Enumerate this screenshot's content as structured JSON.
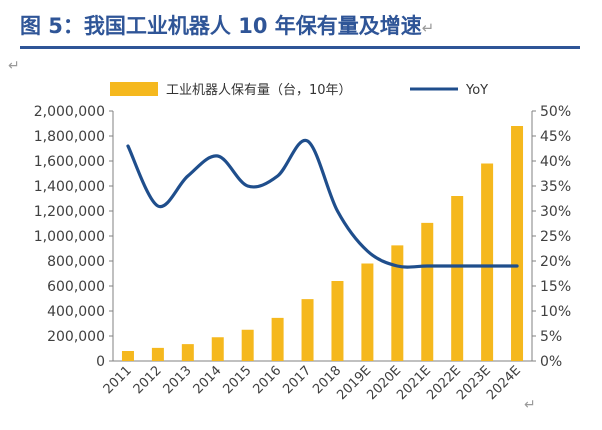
{
  "figure": {
    "title": "图 5：我国工业机器人 10 年保有量及增速",
    "return_mark": "↵"
  },
  "chart_data": {
    "type": "bar",
    "categories": [
      "2011",
      "2012",
      "2013",
      "2014",
      "2015",
      "2016",
      "2017",
      "2018",
      "2019E",
      "2020E",
      "2021E",
      "2022E",
      "2023E",
      "2024E"
    ],
    "series": [
      {
        "name": "工业机器人保有量（台，10年）",
        "type": "bar",
        "axis": "left",
        "color": "#f5b81e",
        "values": [
          80000,
          105000,
          135000,
          190000,
          250000,
          345000,
          495000,
          640000,
          780000,
          925000,
          1105000,
          1320000,
          1580000,
          1880000
        ]
      },
      {
        "name": "YoY",
        "type": "line",
        "axis": "right",
        "color": "#1f4e8c",
        "values": [
          0.43,
          0.31,
          0.37,
          0.41,
          0.35,
          0.37,
          0.44,
          0.3,
          0.22,
          0.19,
          0.19,
          0.19,
          0.19,
          0.19
        ]
      }
    ],
    "y_left": {
      "min": 0,
      "max": 2000000,
      "ticks": [
        0,
        200000,
        400000,
        600000,
        800000,
        1000000,
        1200000,
        1400000,
        1600000,
        1800000,
        2000000
      ],
      "tick_labels": [
        "0",
        "200,000",
        "400,000",
        "600,000",
        "800,000",
        "1,000,000",
        "1,200,000",
        "1,400,000",
        "1,600,000",
        "1,800,000",
        "2,000,000"
      ]
    },
    "y_right": {
      "min": 0,
      "max": 0.5,
      "ticks": [
        0,
        0.05,
        0.1,
        0.15,
        0.2,
        0.25,
        0.3,
        0.35,
        0.4,
        0.45,
        0.5
      ],
      "tick_labels": [
        "0%",
        "5%",
        "10%",
        "15%",
        "20%",
        "25%",
        "30%",
        "35%",
        "40%",
        "45%",
        "50%"
      ]
    },
    "legend": "top",
    "grid": false,
    "xlabel": "",
    "ylabel": ""
  }
}
